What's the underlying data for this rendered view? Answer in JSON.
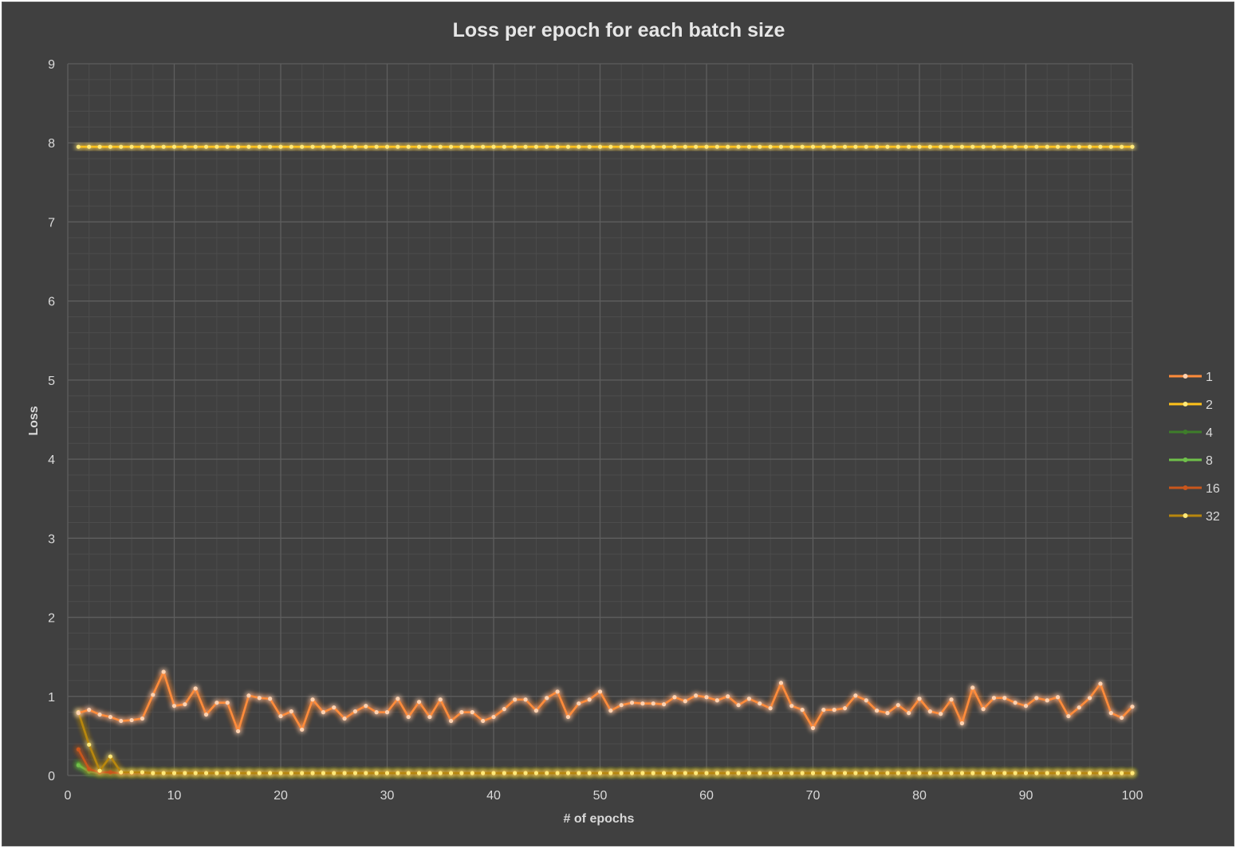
{
  "chart_data": {
    "type": "line",
    "title": "Loss per epoch for each batch size",
    "xlabel": "# of epochs",
    "ylabel": "Loss",
    "xlim": [
      0,
      100
    ],
    "ylim": [
      0,
      9
    ],
    "x_ticks": [
      0,
      10,
      20,
      30,
      40,
      50,
      60,
      70,
      80,
      90,
      100
    ],
    "y_ticks": [
      0,
      1,
      2,
      3,
      4,
      5,
      6,
      7,
      8,
      9
    ],
    "x_minor_step": 2,
    "y_minor_step": 0.2,
    "grid": true,
    "legend_position": "right",
    "x": [
      1,
      2,
      3,
      4,
      5,
      6,
      7,
      8,
      9,
      10,
      11,
      12,
      13,
      14,
      15,
      16,
      17,
      18,
      19,
      20,
      21,
      22,
      23,
      24,
      25,
      26,
      27,
      28,
      29,
      30,
      31,
      32,
      33,
      34,
      35,
      36,
      37,
      38,
      39,
      40,
      41,
      42,
      43,
      44,
      45,
      46,
      47,
      48,
      49,
      50,
      51,
      52,
      53,
      54,
      55,
      56,
      57,
      58,
      59,
      60,
      61,
      62,
      63,
      64,
      65,
      66,
      67,
      68,
      69,
      70,
      71,
      72,
      73,
      74,
      75,
      76,
      77,
      78,
      79,
      80,
      81,
      82,
      83,
      84,
      85,
      86,
      87,
      88,
      89,
      90,
      91,
      92,
      93,
      94,
      95,
      96,
      97,
      98,
      99,
      100
    ],
    "series": [
      {
        "name": "1",
        "color": "#ff8c3a",
        "values": [
          0.79,
          0.83,
          0.77,
          0.74,
          0.69,
          0.7,
          0.72,
          1.02,
          1.31,
          0.88,
          0.9,
          1.1,
          0.77,
          0.92,
          0.92,
          0.56,
          1.01,
          0.98,
          0.97,
          0.75,
          0.81,
          0.58,
          0.96,
          0.8,
          0.86,
          0.72,
          0.81,
          0.88,
          0.8,
          0.8,
          0.97,
          0.74,
          0.93,
          0.74,
          0.96,
          0.69,
          0.8,
          0.8,
          0.69,
          0.74,
          0.84,
          0.96,
          0.96,
          0.82,
          0.98,
          1.06,
          0.74,
          0.91,
          0.96,
          1.06,
          0.82,
          0.89,
          0.92,
          0.91,
          0.91,
          0.9,
          0.99,
          0.94,
          1.01,
          0.99,
          0.95,
          1.0,
          0.89,
          0.97,
          0.91,
          0.85,
          1.17,
          0.88,
          0.83,
          0.6,
          0.83,
          0.83,
          0.85,
          1.01,
          0.95,
          0.82,
          0.79,
          0.89,
          0.79,
          0.97,
          0.81,
          0.78,
          0.96,
          0.66,
          1.11,
          0.84,
          0.98,
          0.98,
          0.92,
          0.88,
          0.98,
          0.95,
          0.99,
          0.75,
          0.86,
          0.98,
          1.16,
          0.79,
          0.73,
          0.87
        ]
      },
      {
        "name": "2",
        "color": "#ffc21a",
        "values": [
          7.95,
          7.95,
          7.95,
          7.95,
          7.95,
          7.95,
          7.95,
          7.95,
          7.95,
          7.95,
          7.95,
          7.95,
          7.95,
          7.95,
          7.95,
          7.95,
          7.95,
          7.95,
          7.95,
          7.95,
          7.95,
          7.95,
          7.95,
          7.95,
          7.95,
          7.95,
          7.95,
          7.95,
          7.95,
          7.95,
          7.95,
          7.95,
          7.95,
          7.95,
          7.95,
          7.95,
          7.95,
          7.95,
          7.95,
          7.95,
          7.95,
          7.95,
          7.95,
          7.95,
          7.95,
          7.95,
          7.95,
          7.95,
          7.95,
          7.95,
          7.95,
          7.95,
          7.95,
          7.95,
          7.95,
          7.95,
          7.95,
          7.95,
          7.95,
          7.95,
          7.95,
          7.95,
          7.95,
          7.95,
          7.95,
          7.95,
          7.95,
          7.95,
          7.95,
          7.95,
          7.95,
          7.95,
          7.95,
          7.95,
          7.95,
          7.95,
          7.95,
          7.95,
          7.95,
          7.95,
          7.95,
          7.95,
          7.95,
          7.95,
          7.95,
          7.95,
          7.95,
          7.95,
          7.95,
          7.95,
          7.95,
          7.95,
          7.95,
          7.95,
          7.95,
          7.95,
          7.95,
          7.95,
          7.95,
          7.95
        ]
      },
      {
        "name": "4",
        "color": "#3e7d2a",
        "values": [
          0.15,
          0.05,
          0.03,
          0.03,
          0.03,
          0.03,
          0.03,
          0.03,
          0.03,
          0.03,
          0.03,
          0.03,
          0.03,
          0.03,
          0.03,
          0.03,
          0.03,
          0.03,
          0.03,
          0.03,
          0.03,
          0.03,
          0.03,
          0.03,
          0.03,
          0.03,
          0.03,
          0.03,
          0.03,
          0.03,
          0.03,
          0.03,
          0.03,
          0.03,
          0.03,
          0.03,
          0.03,
          0.03,
          0.03,
          0.03,
          0.03,
          0.03,
          0.03,
          0.03,
          0.03,
          0.03,
          0.03,
          0.03,
          0.03,
          0.03,
          0.03,
          0.03,
          0.03,
          0.03,
          0.03,
          0.03,
          0.03,
          0.03,
          0.03,
          0.03,
          0.03,
          0.03,
          0.03,
          0.03,
          0.03,
          0.03,
          0.03,
          0.03,
          0.03,
          0.03,
          0.03,
          0.03,
          0.03,
          0.03,
          0.03,
          0.03,
          0.03,
          0.03,
          0.03,
          0.03,
          0.03,
          0.03,
          0.03,
          0.03,
          0.03,
          0.03,
          0.03,
          0.03,
          0.03,
          0.03,
          0.03,
          0.03,
          0.03,
          0.03,
          0.03,
          0.03,
          0.03,
          0.03,
          0.03,
          0.03
        ]
      },
      {
        "name": "8",
        "color": "#6fc04a",
        "values": [
          0.13,
          0.05,
          0.03,
          0.03,
          0.03,
          0.03,
          0.03,
          0.03,
          0.03,
          0.03,
          0.03,
          0.03,
          0.03,
          0.03,
          0.03,
          0.03,
          0.03,
          0.03,
          0.03,
          0.03,
          0.03,
          0.03,
          0.03,
          0.03,
          0.03,
          0.03,
          0.03,
          0.03,
          0.03,
          0.03,
          0.03,
          0.03,
          0.03,
          0.03,
          0.03,
          0.03,
          0.03,
          0.03,
          0.03,
          0.03,
          0.03,
          0.03,
          0.03,
          0.03,
          0.03,
          0.03,
          0.03,
          0.03,
          0.03,
          0.03,
          0.03,
          0.03,
          0.03,
          0.03,
          0.03,
          0.03,
          0.03,
          0.03,
          0.03,
          0.03,
          0.03,
          0.03,
          0.03,
          0.03,
          0.03,
          0.03,
          0.03,
          0.03,
          0.03,
          0.03,
          0.03,
          0.03,
          0.03,
          0.03,
          0.03,
          0.03,
          0.03,
          0.03,
          0.03,
          0.03,
          0.03,
          0.03,
          0.03,
          0.03,
          0.03,
          0.03,
          0.03,
          0.03,
          0.03,
          0.03,
          0.03,
          0.03,
          0.03,
          0.03,
          0.03,
          0.03,
          0.03,
          0.03,
          0.03,
          0.03
        ]
      },
      {
        "name": "16",
        "color": "#c9561c",
        "values": [
          0.33,
          0.08,
          0.04,
          0.04,
          0.03,
          0.03,
          0.03,
          0.03,
          0.03,
          0.03,
          0.03,
          0.03,
          0.03,
          0.03,
          0.03,
          0.03,
          0.03,
          0.03,
          0.03,
          0.03,
          0.03,
          0.03,
          0.03,
          0.03,
          0.03,
          0.03,
          0.03,
          0.03,
          0.03,
          0.03,
          0.03,
          0.03,
          0.03,
          0.03,
          0.03,
          0.03,
          0.03,
          0.03,
          0.03,
          0.03,
          0.03,
          0.03,
          0.03,
          0.03,
          0.03,
          0.03,
          0.03,
          0.03,
          0.03,
          0.03,
          0.03,
          0.03,
          0.03,
          0.03,
          0.03,
          0.03,
          0.03,
          0.03,
          0.03,
          0.03,
          0.03,
          0.03,
          0.03,
          0.03,
          0.03,
          0.03,
          0.03,
          0.03,
          0.03,
          0.03,
          0.03,
          0.03,
          0.03,
          0.03,
          0.03,
          0.03,
          0.03,
          0.03,
          0.03,
          0.03,
          0.03,
          0.03,
          0.03,
          0.03,
          0.03,
          0.03,
          0.03,
          0.03,
          0.03,
          0.03,
          0.03,
          0.03,
          0.03,
          0.03,
          0.03,
          0.03,
          0.03,
          0.03,
          0.03,
          0.03
        ]
      },
      {
        "name": "32",
        "color": "#b8870e",
        "values": [
          0.8,
          0.39,
          0.06,
          0.24,
          0.04,
          0.04,
          0.04,
          0.03,
          0.03,
          0.03,
          0.03,
          0.03,
          0.03,
          0.03,
          0.03,
          0.03,
          0.03,
          0.03,
          0.03,
          0.03,
          0.03,
          0.03,
          0.03,
          0.03,
          0.03,
          0.03,
          0.03,
          0.03,
          0.03,
          0.03,
          0.03,
          0.03,
          0.03,
          0.03,
          0.03,
          0.03,
          0.03,
          0.03,
          0.03,
          0.03,
          0.03,
          0.03,
          0.03,
          0.03,
          0.03,
          0.03,
          0.03,
          0.03,
          0.03,
          0.03,
          0.03,
          0.03,
          0.03,
          0.03,
          0.03,
          0.03,
          0.03,
          0.03,
          0.03,
          0.03,
          0.03,
          0.03,
          0.03,
          0.03,
          0.03,
          0.03,
          0.03,
          0.03,
          0.03,
          0.03,
          0.03,
          0.03,
          0.03,
          0.03,
          0.03,
          0.03,
          0.03,
          0.03,
          0.03,
          0.03,
          0.03,
          0.03,
          0.03,
          0.03,
          0.03,
          0.03,
          0.03,
          0.03,
          0.03,
          0.03,
          0.03,
          0.03,
          0.03,
          0.03,
          0.03,
          0.03,
          0.03,
          0.03,
          0.03,
          0.03
        ]
      }
    ]
  }
}
